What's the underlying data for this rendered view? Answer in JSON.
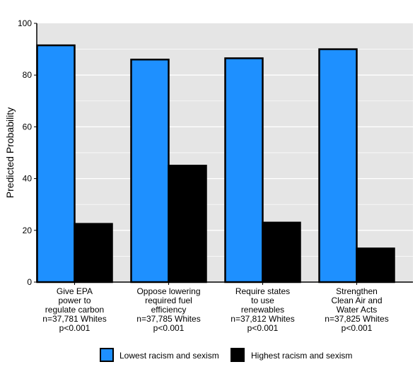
{
  "chart_data": {
    "type": "bar",
    "ylabel": "Predicted Probability",
    "ylim": [
      0,
      100
    ],
    "yticks": [
      0,
      20,
      40,
      60,
      80,
      100
    ],
    "categories": [
      [
        "Give EPA",
        "power to",
        "regulate carbon",
        "n=37,781 Whites",
        "p<0.001"
      ],
      [
        "Oppose lowering",
        "required fuel",
        "efficiency",
        "n=37,785 Whites",
        "p<0.001"
      ],
      [
        "Require states",
        "to use",
        "renewables",
        "n=37,812 Whites",
        "p<0.001"
      ],
      [
        "Strengthen",
        "Clean Air and",
        "Water Acts",
        "n=37,825 Whites",
        "p<0.001"
      ]
    ],
    "series": [
      {
        "name": "Lowest racism and sexism",
        "color": "#1e90ff",
        "values": [
          91.5,
          86,
          86.5,
          90
        ]
      },
      {
        "name": "Highest racism and sexism",
        "color": "#000000",
        "values": [
          22.5,
          45,
          23,
          13
        ]
      }
    ],
    "grid": true,
    "plot_background": "#e5e5e5",
    "legend_position": "bottom"
  }
}
